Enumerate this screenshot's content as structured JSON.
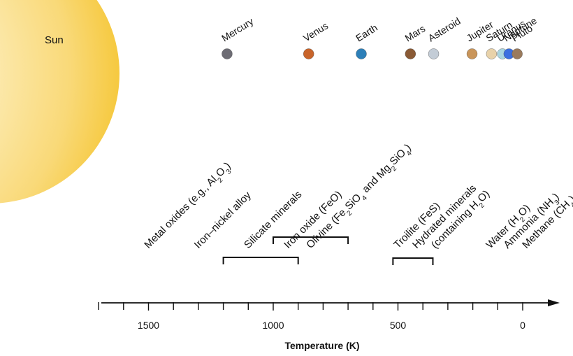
{
  "sun": {
    "label": "Sun",
    "color": "#f6c93f"
  },
  "planets": [
    {
      "name": "Mercury",
      "t": 1185,
      "color": "#6d6c74"
    },
    {
      "name": "Venus",
      "t": 858,
      "color": "#c8642a"
    },
    {
      "name": "Earth",
      "t": 647,
      "color": "#2d7fb8"
    },
    {
      "name": "Mars",
      "t": 450,
      "color": "#8a5a35"
    },
    {
      "name": "Asteroid",
      "t": 357,
      "color": "#c3ccd6"
    },
    {
      "name": "Jupiter",
      "t": 203,
      "color": "#c9955a"
    },
    {
      "name": "Saturn",
      "t": 125,
      "color": "#e8d2aa"
    },
    {
      "name": "Uranus",
      "t": 81,
      "color": "#a9d5e0"
    },
    {
      "name": "Neptune",
      "t": 55,
      "color": "#3b6fe0"
    },
    {
      "name": "Pluto",
      "t": 22,
      "color": "#9a7a5c"
    }
  ],
  "minerals": [
    {
      "key": "metal-oxides",
      "t": 1500,
      "parts": [
        [
          "Metal oxides (e.g., Al",
          ""
        ],
        [
          "2",
          "sub"
        ],
        [
          "O",
          ""
        ],
        [
          "3",
          "sub"
        ],
        [
          ")",
          ""
        ]
      ]
    },
    {
      "key": "iron-nickel-alloy",
      "t": 1300,
      "parts": [
        [
          "Iron–nickel alloy",
          ""
        ]
      ]
    },
    {
      "key": "silicate-minerals",
      "t": 1100,
      "parts": [
        [
          "Silicate minerals",
          ""
        ]
      ]
    },
    {
      "key": "iron-oxide",
      "t": 940,
      "parts": [
        [
          "Iron oxide (FeO)",
          ""
        ]
      ]
    },
    {
      "key": "olivine",
      "t": 850,
      "parts": [
        [
          "Olivine (Fe",
          ""
        ],
        [
          "2",
          "sub"
        ],
        [
          "SiO",
          ""
        ],
        [
          "4",
          "sub"
        ],
        [
          " and Mg",
          ""
        ],
        [
          "2",
          "sub"
        ],
        [
          "SiO",
          ""
        ],
        [
          "4",
          "sub"
        ],
        [
          ")",
          ""
        ]
      ]
    },
    {
      "key": "troilite",
      "t": 500,
      "parts": [
        [
          "Troilite (FeS)",
          ""
        ]
      ]
    },
    {
      "key": "hydrated-1",
      "t": 425,
      "parts": [
        [
          "Hydrated minerals",
          ""
        ]
      ]
    },
    {
      "key": "hydrated-2",
      "t": 350,
      "parts": [
        [
          "(containing H",
          ""
        ],
        [
          "2",
          "sub"
        ],
        [
          "O)",
          ""
        ]
      ]
    },
    {
      "key": "water",
      "t": 130,
      "parts": [
        [
          "Water (H",
          ""
        ],
        [
          "2",
          "sub"
        ],
        [
          "O)",
          ""
        ]
      ]
    },
    {
      "key": "ammonia",
      "t": 60,
      "parts": [
        [
          "Ammonia (NH",
          ""
        ],
        [
          "3",
          "sub"
        ],
        [
          ")",
          ""
        ]
      ]
    },
    {
      "key": "methane",
      "t": -15,
      "parts": [
        [
          "Methane (CH",
          ""
        ],
        [
          "4",
          "sub"
        ],
        [
          ")",
          ""
        ]
      ]
    }
  ],
  "brackets": [
    {
      "key": "silicate-bracket",
      "from": 1200,
      "to": 900
    },
    {
      "key": "olivine-bracket",
      "from": 1000,
      "to": 700
    },
    {
      "key": "troilite-bracket",
      "from": 520,
      "to": 360
    }
  ],
  "axis": {
    "label": "Temperature (K)",
    "min": 0,
    "max": 1700,
    "major_ticks": [
      1500,
      1000,
      500,
      0
    ],
    "minor_step": 100
  }
}
